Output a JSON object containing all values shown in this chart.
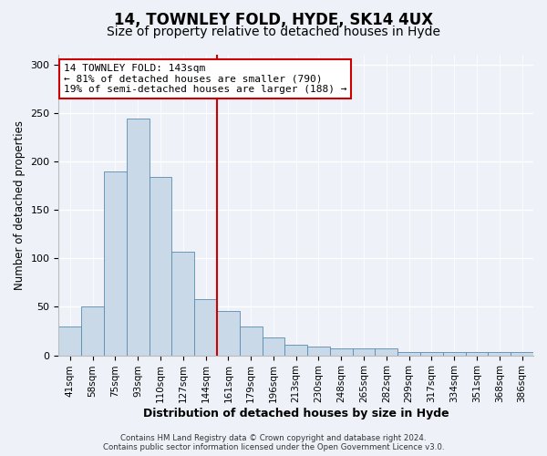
{
  "title1": "14, TOWNLEY FOLD, HYDE, SK14 4UX",
  "title2": "Size of property relative to detached houses in Hyde",
  "xlabel": "Distribution of detached houses by size in Hyde",
  "ylabel": "Number of detached properties",
  "footer1": "Contains HM Land Registry data © Crown copyright and database right 2024.",
  "footer2": "Contains public sector information licensed under the Open Government Licence v3.0.",
  "annotation_line1": "14 TOWNLEY FOLD: 143sqm",
  "annotation_line2": "← 81% of detached houses are smaller (790)",
  "annotation_line3": "19% of semi-detached houses are larger (188) →",
  "vline_x": 6.5,
  "bar_labels": [
    "41sqm",
    "58sqm",
    "75sqm",
    "93sqm",
    "110sqm",
    "127sqm",
    "144sqm",
    "161sqm",
    "179sqm",
    "196sqm",
    "213sqm",
    "230sqm",
    "248sqm",
    "265sqm",
    "282sqm",
    "299sqm",
    "317sqm",
    "334sqm",
    "351sqm",
    "368sqm",
    "386sqm"
  ],
  "bar_values": [
    30,
    50,
    190,
    244,
    184,
    107,
    58,
    46,
    30,
    18,
    11,
    9,
    7,
    7,
    7,
    3,
    3,
    3,
    3,
    3,
    3
  ],
  "bar_color": "#c9d9e8",
  "bar_edge_color": "#5a8bb0",
  "background_color": "#eef2f8",
  "vline_color": "#cc0000",
  "ylim": [
    0,
    310
  ],
  "yticks": [
    0,
    50,
    100,
    150,
    200,
    250,
    300
  ],
  "title1_fontsize": 12,
  "title2_fontsize": 10,
  "xlabel_fontsize": 9,
  "ylabel_fontsize": 8.5,
  "annotation_box_color": "#ffffff",
  "annotation_box_edge": "#cc0000",
  "annotation_fontsize": 8.0,
  "tick_fontsize": 7.5,
  "ytick_fontsize": 8.0
}
